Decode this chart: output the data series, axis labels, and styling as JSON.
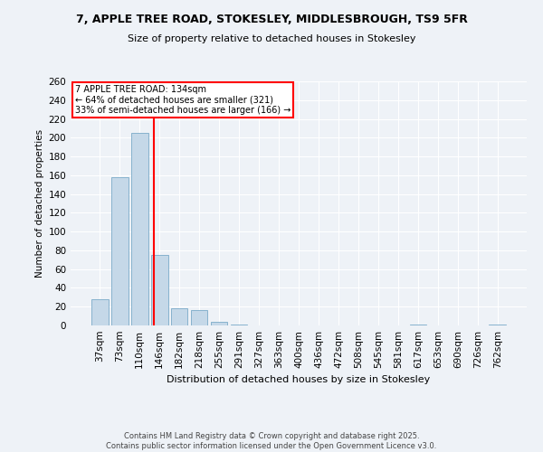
{
  "title_line1": "7, APPLE TREE ROAD, STOKESLEY, MIDDLESBROUGH, TS9 5FR",
  "title_line2": "Size of property relative to detached houses in Stokesley",
  "xlabel": "Distribution of detached houses by size in Stokesley",
  "ylabel": "Number of detached properties",
  "categories": [
    "37sqm",
    "73sqm",
    "110sqm",
    "146sqm",
    "182sqm",
    "218sqm",
    "255sqm",
    "291sqm",
    "327sqm",
    "363sqm",
    "400sqm",
    "436sqm",
    "472sqm",
    "508sqm",
    "545sqm",
    "581sqm",
    "617sqm",
    "653sqm",
    "690sqm",
    "726sqm",
    "762sqm"
  ],
  "values": [
    28,
    158,
    205,
    75,
    18,
    16,
    4,
    1,
    0,
    0,
    0,
    0,
    0,
    0,
    0,
    0,
    1,
    0,
    0,
    0,
    1
  ],
  "bar_color": "#c5d8e8",
  "bar_edge_color": "#7aaac8",
  "red_line_label": "7 APPLE TREE ROAD: 134sqm",
  "annotation_line1": "← 64% of detached houses are smaller (321)",
  "annotation_line2": "33% of semi-detached houses are larger (166) →",
  "ylim": [
    0,
    260
  ],
  "bg_color": "#eef2f7",
  "grid_color": "#ffffff",
  "footnote_line1": "Contains HM Land Registry data © Crown copyright and database right 2025.",
  "footnote_line2": "Contains public sector information licensed under the Open Government Licence v3.0."
}
